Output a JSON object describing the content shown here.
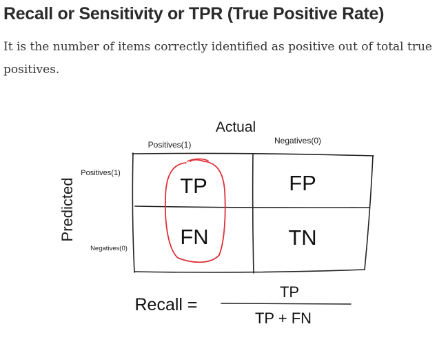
{
  "heading": "Recall or Sensitivity or TPR (True Positive Rate)",
  "description": "It is the number of items correctly identified as positive out of total true positives.",
  "matrix": {
    "actual_label": "Actual",
    "predicted_label": "Predicted",
    "actual_positive": "Positives(1)",
    "actual_negative": "Negatives(0)",
    "predicted_positive": "Positives(1)",
    "predicted_negative": "Negatives(0)",
    "cells": {
      "tp": "TP",
      "fp": "FP",
      "fn": "FN",
      "tn": "TN"
    },
    "highlight_color": "#e03038"
  },
  "formula": {
    "lhs": "Recall =",
    "numerator": "TP",
    "denominator": "TP + FN"
  }
}
